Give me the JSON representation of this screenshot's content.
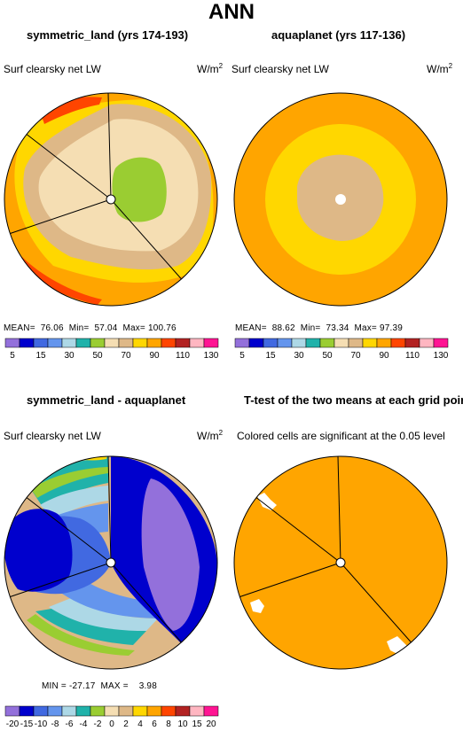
{
  "page": {
    "title": "ANN"
  },
  "colors": {
    "palette": [
      "#9370db",
      "#0000cd",
      "#4169e1",
      "#6495ed",
      "#add8e6",
      "#20b2aa",
      "#9acd32",
      "#f5deb3",
      "#deb887",
      "#ffd700",
      "#ffa500",
      "#ff4500",
      "#b22222",
      "#ffb6c1",
      "#ff1493"
    ],
    "significant": "#ffa500",
    "mask": "#ffffff"
  },
  "panels": {
    "p1": {
      "title": "symmetric_land (yrs 174-193)",
      "ylabel": "Surf clearsky net LW",
      "units": "W/m",
      "units_sup": "2",
      "stats": {
        "mean_label": "MEAN=",
        "mean": "76.06",
        "min_label": "Min=",
        "min": "57.04",
        "max_label": "Max=",
        "max": "100.76"
      }
    },
    "p2": {
      "title": "aquaplanet (yrs 117-136)",
      "ylabel": "Surf clearsky net LW",
      "units": "W/m",
      "units_sup": "2",
      "stats": {
        "mean_label": "MEAN=",
        "mean": "88.62",
        "min_label": "Min=",
        "min": "73.34",
        "max_label": "Max=",
        "max": "97.39"
      }
    },
    "p3": {
      "title": "symmetric_land - aquaplanet",
      "ylabel": "Surf clearsky net LW",
      "units": "W/m",
      "units_sup": "2",
      "stats": {
        "min_label": "MIN =",
        "min": "-27.17",
        "max_label": "MAX =",
        "max": "3.98"
      }
    },
    "p4": {
      "title": "T-test of the two means at each grid point",
      "note": "Colored cells are significant at the 0.05 level"
    }
  },
  "colorbars": {
    "top": {
      "ticks": [
        "5",
        "15",
        "30",
        "50",
        "70",
        "90",
        "110",
        "130"
      ]
    },
    "diff": {
      "ticks": [
        "-20",
        "-15",
        "-10",
        "-8",
        "-6",
        "-4",
        "-2",
        "0",
        "2",
        "4",
        "6",
        "8",
        "10",
        "15",
        "20"
      ]
    }
  },
  "chart_data": [
    {
      "type": "heatmap",
      "projection": "polar stereographic",
      "title": "symmetric_land (yrs 174-193)",
      "ylabel": "Surf clearsky net LW",
      "units": "W/m2",
      "stats": {
        "mean": 76.06,
        "min": 57.04,
        "max": 100.76
      },
      "levels": [
        5,
        10,
        15,
        20,
        30,
        40,
        50,
        60,
        70,
        80,
        90,
        100,
        110,
        120,
        130
      ],
      "fields": [
        {
          "region": "pole",
          "value_range": [
            60,
            70
          ],
          "color": "#9acd32"
        },
        {
          "region": "inner land",
          "value_range": [
            70,
            80
          ],
          "color": "#f5deb3"
        },
        {
          "region": "middle ring",
          "value_range": [
            80,
            90
          ],
          "color": "#deb887"
        },
        {
          "region": "outer ring",
          "value_range": [
            90,
            100
          ],
          "color": "#ffd700"
        },
        {
          "region": "equator",
          "value_range": [
            100,
            110
          ],
          "color": "#ffa500"
        },
        {
          "region": "edge patches",
          "value_range": [
            110,
            120
          ],
          "color": "#ff4500"
        }
      ]
    },
    {
      "type": "heatmap",
      "projection": "polar stereographic",
      "title": "aquaplanet (yrs 117-136)",
      "ylabel": "Surf clearsky net LW",
      "units": "W/m2",
      "stats": {
        "mean": 88.62,
        "min": 73.34,
        "max": 97.39
      },
      "levels": [
        5,
        10,
        15,
        20,
        30,
        40,
        50,
        60,
        70,
        80,
        90,
        100,
        110,
        120,
        130
      ],
      "fields": [
        {
          "region": "pole",
          "value_range": [
            80,
            90
          ],
          "color": "#deb887"
        },
        {
          "region": "middle ring",
          "value_range": [
            90,
            100
          ],
          "color": "#ffd700"
        },
        {
          "region": "outer",
          "value_range": [
            100,
            110
          ],
          "color": "#ffa500"
        }
      ]
    },
    {
      "type": "heatmap",
      "projection": "polar stereographic",
      "title": "symmetric_land - aquaplanet",
      "ylabel": "Surf clearsky net LW",
      "units": "W/m2",
      "stats": {
        "min": -27.17,
        "max": 3.98
      },
      "levels": [
        -20,
        -15,
        -10,
        -8,
        -6,
        -4,
        -2,
        0,
        2,
        4,
        6,
        8,
        10,
        15,
        20
      ],
      "fields": [
        {
          "region": "land sector",
          "value_range": [
            -27.17,
            -20
          ],
          "color": "#9370db"
        },
        {
          "region": "land sector ring",
          "value_range": [
            -20,
            -15
          ],
          "color": "#0000cd"
        },
        {
          "region": "left sector",
          "value_range": [
            -15,
            -10
          ],
          "color": "#4169e1"
        },
        {
          "region": "bands",
          "value_range": [
            -8,
            0
          ],
          "color": "#20b2aa"
        },
        {
          "region": "outer ocean",
          "value_range": [
            0,
            2
          ],
          "color": "#deb887"
        }
      ]
    },
    {
      "type": "heatmap",
      "projection": "polar stereographic",
      "title": "T-test of the two means at each grid point",
      "note": "Colored cells are significant at the 0.05 level",
      "fields": [
        {
          "region": "most of domain",
          "significant": true,
          "color": "#ffa500"
        },
        {
          "region": "small white patches",
          "significant": false,
          "color": "#ffffff"
        }
      ]
    }
  ]
}
